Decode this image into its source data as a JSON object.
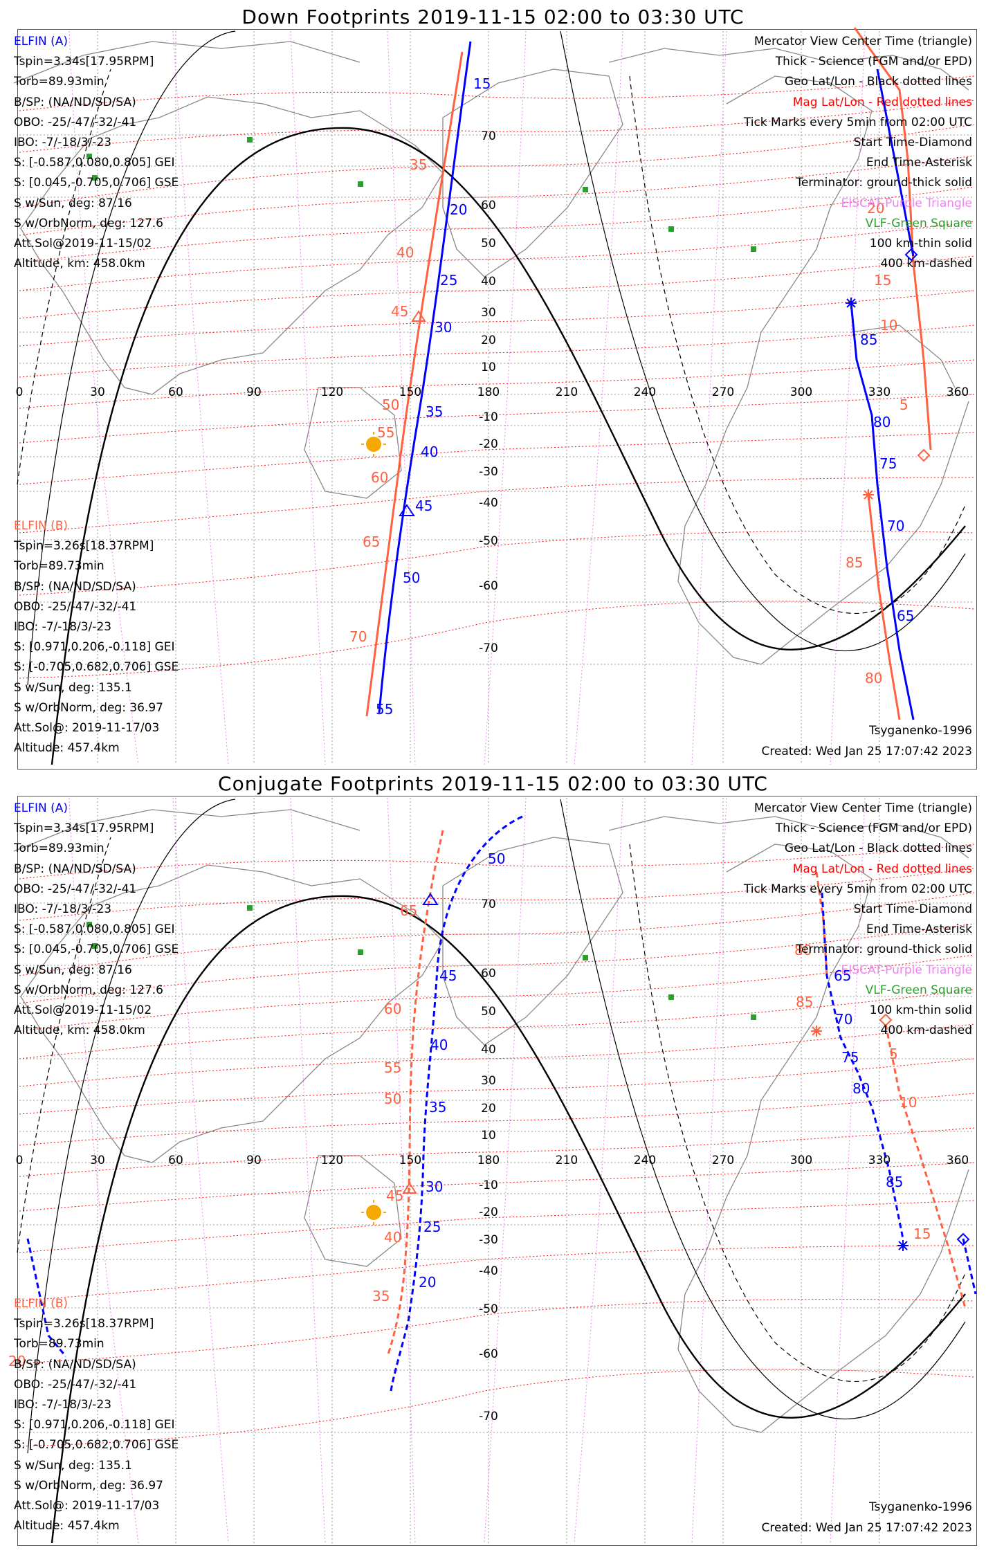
{
  "panels": [
    {
      "title": "Down Footprints 2019-11-15 02:00 to 03:30 UTC",
      "sat_a": {
        "name": "ELFIN (A)",
        "lines": [
          "Tspin=3.34s[17.95RPM]",
          "Torb=89.93min",
          "B/SP: (NA/ND/SD/SA)",
          "OBO: -25/-47/-32/-41",
          "IBO: -7/-18/3/-23",
          "S: [-0.587,0.080,0.805] GEI",
          "S: [0.045,-0.705,0.706] GSE",
          "S w/Sun, deg: 87.16",
          "S w/OrbNorm, deg: 127.6",
          "Att.Sol@2019-11-15/02",
          "Altitude, km: 458.0km"
        ]
      },
      "sat_b": {
        "name": "ELFIN (B)",
        "lines": [
          "Tspin=3.26s[18.37RPM]",
          "Torb=89.73min",
          "B/SP: (NA/ND/SD/SA)",
          "OBO: -25/-47/-32/-41",
          "IBO: -7/-18/3/-23",
          "S: [0.971,0.206,-0.118] GEI",
          "S: [-0.705,0.682,0.706] GSE",
          "S w/Sun, deg: 135.1",
          "S w/OrbNorm, deg: 36.97",
          "Att.Sol@: 2019-11-17/03",
          "Altitude: 457.4km"
        ]
      },
      "legend": [
        {
          "text": "Mercator View Center Time (triangle)",
          "color": "#000000"
        },
        {
          "text": "Thick - Science (FGM and/or EPD)",
          "color": "#000000"
        },
        {
          "text": "Geo Lat/Lon - Black dotted lines",
          "color": "#000000"
        },
        {
          "text": "Mag Lat/Lon - Red dotted lines",
          "color": "#ff0000"
        },
        {
          "text": "Tick Marks every 5min from 02:00 UTC",
          "color": "#000000"
        },
        {
          "text": "Start Time-Diamond",
          "color": "#000000"
        },
        {
          "text": "End Time-Asterisk",
          "color": "#000000"
        },
        {
          "text": "Terminator: ground-thick solid",
          "color": "#000000"
        },
        {
          "text": "EISCAT-Purple Triangle",
          "color": "#ee82ee"
        },
        {
          "text": "VLF-Green Square",
          "color": "#2ca02c"
        },
        {
          "text": "100 km-thin solid",
          "color": "#000000"
        },
        {
          "text": "400 km-dashed",
          "color": "#000000"
        }
      ],
      "model": "Tsyganenko-1996",
      "created": "Created: Wed Jan 25 17:07:42 2023",
      "lon_labels": [
        "0",
        "30",
        "60",
        "90",
        "120",
        "150",
        "180",
        "210",
        "240",
        "270",
        "300",
        "330",
        "360"
      ],
      "lat_labels": [
        "70",
        "60",
        "50",
        "40",
        "30",
        "20",
        "10",
        "-10",
        "-20",
        "-30",
        "-40",
        "-50",
        "-60",
        "-70"
      ],
      "tracks": {
        "a_color": "#0000ff",
        "b_color": "#ff6040",
        "a_ticks": [
          "15",
          "20",
          "25",
          "30",
          "35",
          "40",
          "45",
          "50",
          "55"
        ],
        "b_ticks": [
          "35",
          "40",
          "45",
          "50",
          "55",
          "60",
          "65",
          "70"
        ],
        "a2_ticks": [
          "85",
          "80",
          "75",
          "70",
          "65"
        ],
        "b2_ticks": [
          "20",
          "15",
          "10",
          "5"
        ],
        "b3_ticks": [
          "85",
          "80"
        ]
      }
    },
    {
      "title": "Conjugate Footprints 2019-11-15 02:00 to 03:30 UTC",
      "model": "Tsyganenko-1996",
      "created": "Created: Wed Jan 25 17:07:42 2023",
      "tracks": {
        "a_ticks": [
          "50",
          "45",
          "40",
          "35",
          "30",
          "25",
          "20"
        ],
        "b_ticks": [
          "65",
          "60",
          "55",
          "50",
          "45",
          "40",
          "35"
        ],
        "a2_ticks": [
          "65",
          "70",
          "75",
          "80",
          "85"
        ],
        "b2_ticks": [
          "80",
          "85",
          "5",
          "10",
          "15",
          "20"
        ]
      }
    }
  ]
}
